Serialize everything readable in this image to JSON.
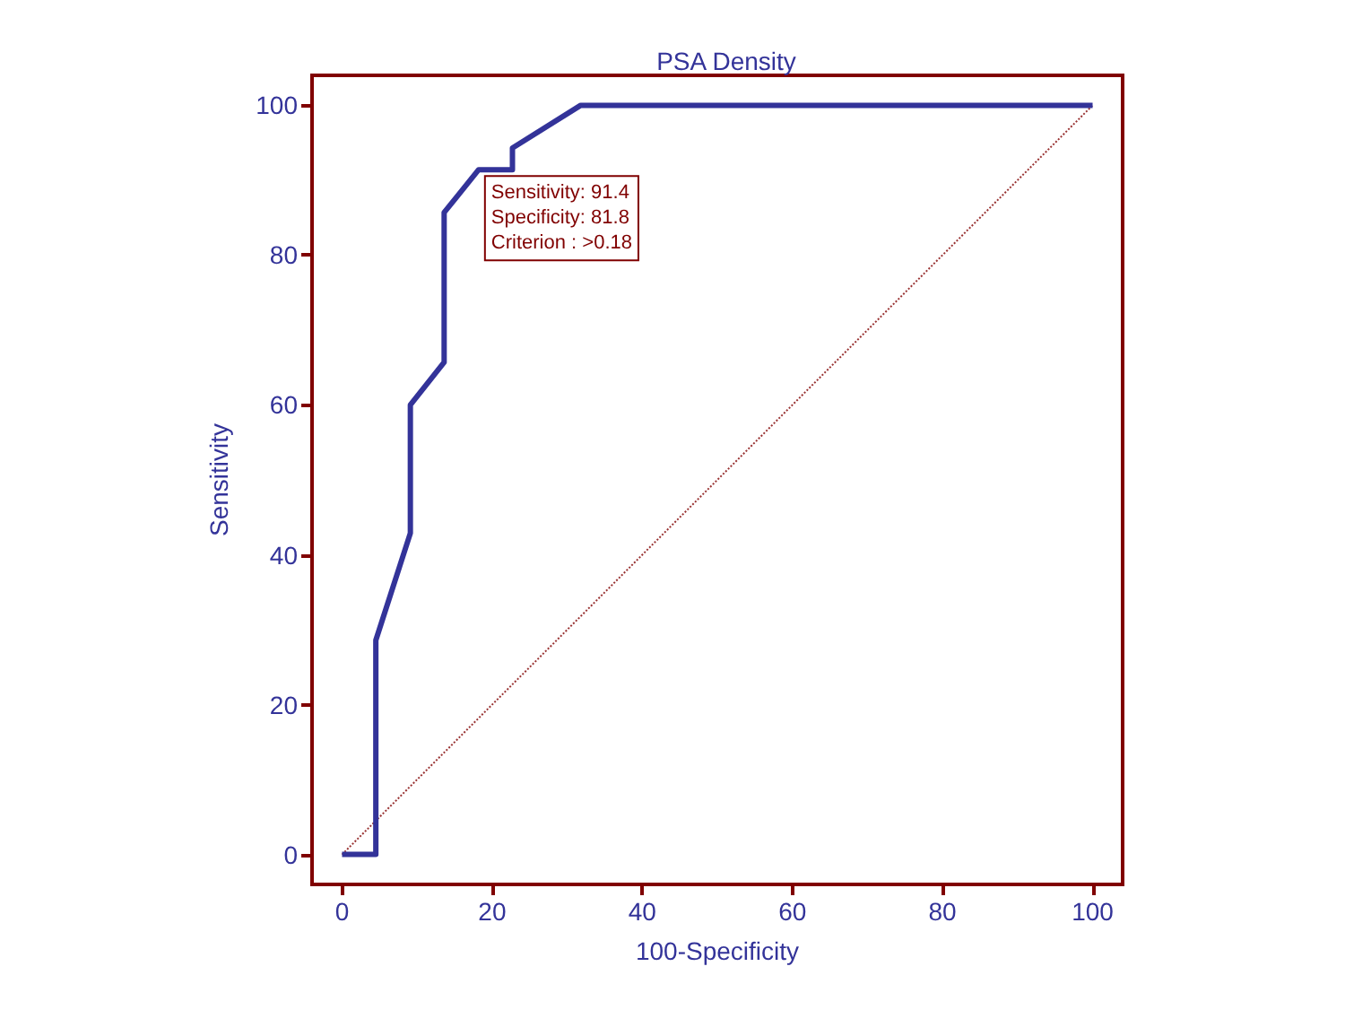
{
  "chart_data": {
    "type": "line",
    "title": "PSA Density",
    "xlabel": "100-Specificity",
    "ylabel": "Sensitivity",
    "xlim": [
      -4,
      104
    ],
    "ylim": [
      -4,
      104
    ],
    "xticks": [
      0,
      20,
      40,
      60,
      80,
      100
    ],
    "yticks": [
      0,
      20,
      40,
      60,
      80,
      100
    ],
    "grid": false,
    "marker": "none",
    "series": [
      {
        "color": "#333399",
        "line_style": "solid",
        "x": [
          0,
          4.5,
          4.5,
          9.1,
          9.1,
          13.6,
          13.6,
          18.2,
          22.7,
          22.7,
          31.8,
          100
        ],
        "values": [
          0,
          0,
          28.6,
          42.9,
          60,
          65.7,
          85.7,
          91.4,
          91.4,
          94.3,
          100,
          100
        ]
      },
      {
        "color": "#993333",
        "line_style": "dotted",
        "x": [
          0,
          100
        ],
        "values": [
          0,
          100
        ]
      }
    ],
    "annotations": [
      {
        "text": "Sensitivity: 91.4\nSpecificity: 81.8\nCriterion : >0.18",
        "x": 18.2,
        "y": 91.4
      }
    ]
  }
}
